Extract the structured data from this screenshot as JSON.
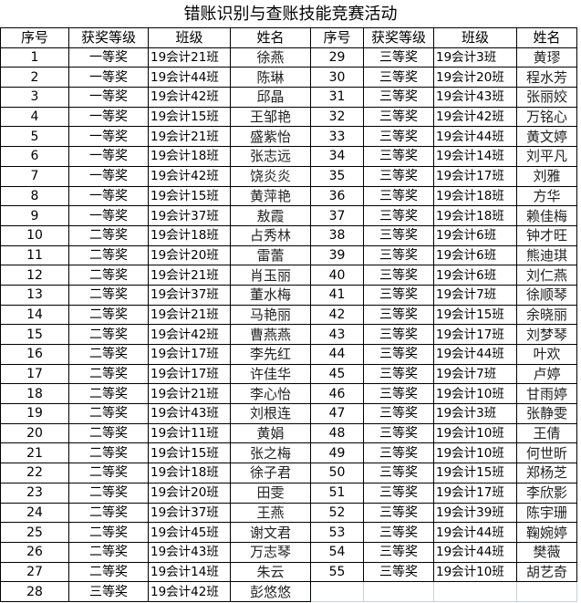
{
  "title": "错账识别与查账技能竞赛活动",
  "headers": [
    "序号",
    "获奖等级",
    "班级",
    "姓名",
    "序号",
    "获奖等级",
    "班级",
    "姓名"
  ],
  "left": [
    [
      "1",
      "一等奖",
      "19会计21班",
      "徐燕"
    ],
    [
      "2",
      "一等奖",
      "19会计44班",
      "陈琳"
    ],
    [
      "3",
      "一等奖",
      "19会计42班",
      "邱晶"
    ],
    [
      "4",
      "一等奖",
      "19会计15班",
      "王邹艳"
    ],
    [
      "5",
      "一等奖",
      "19会计21班",
      "盛紫怡"
    ],
    [
      "6",
      "一等奖",
      "19会计18班",
      "张志远"
    ],
    [
      "7",
      "一等奖",
      "19会计42班",
      "饶炎炎"
    ],
    [
      "8",
      "一等奖",
      "19会计15班",
      "黄萍艳"
    ],
    [
      "9",
      "一等奖",
      "19会计37班",
      "敖霞"
    ],
    [
      "10",
      "二等奖",
      "19会计18班",
      "占秀林"
    ],
    [
      "11",
      "二等奖",
      "19会计20班",
      "雷蕾"
    ],
    [
      "12",
      "二等奖",
      "19会计21班",
      "肖玉丽"
    ],
    [
      "13",
      "二等奖",
      "19会计37班",
      "董水梅"
    ],
    [
      "14",
      "二等奖",
      "19会计21班",
      "马艳丽"
    ],
    [
      "15",
      "二等奖",
      "19会计42班",
      "曹燕燕"
    ],
    [
      "16",
      "二等奖",
      "19会计17班",
      "李先红"
    ],
    [
      "17",
      "二等奖",
      "19会计17班",
      "许佳华"
    ],
    [
      "18",
      "二等奖",
      "19会计21班",
      "李心怡"
    ],
    [
      "19",
      "二等奖",
      "19会计43班",
      "刘根连"
    ],
    [
      "20",
      "二等奖",
      "19会计11班",
      "黄娟"
    ],
    [
      "21",
      "二等奖",
      "19会计15班",
      "张之梅"
    ],
    [
      "22",
      "二等奖",
      "19会计18班",
      "徐子君"
    ],
    [
      "23",
      "二等奖",
      "19会计20班",
      "田雯"
    ],
    [
      "24",
      "二等奖",
      "19会计37班",
      "王燕"
    ],
    [
      "25",
      "二等奖",
      "19会计45班",
      "谢文君"
    ],
    [
      "26",
      "二等奖",
      "19会计43班",
      "万志琴"
    ],
    [
      "27",
      "二等奖",
      "19会计14班",
      "朱云"
    ],
    [
      "28",
      "三等奖",
      "19会计42班",
      "彭悠悠"
    ]
  ],
  "right": [
    [
      "29",
      "三等奖",
      "19会计3班",
      "黄璆"
    ],
    [
      "30",
      "三等奖",
      "19会计20班",
      "程水芳"
    ],
    [
      "31",
      "三等奖",
      "19会计43班",
      "张丽姣"
    ],
    [
      "32",
      "三等奖",
      "19会计42班",
      "万铭心"
    ],
    [
      "33",
      "三等奖",
      "19会计44班",
      "黄文婷"
    ],
    [
      "34",
      "三等奖",
      "19会计14班",
      "刘平凡"
    ],
    [
      "35",
      "三等奖",
      "19会计17班",
      "刘雅"
    ],
    [
      "36",
      "三等奖",
      "19会计18班",
      "方华"
    ],
    [
      "37",
      "三等奖",
      "19会计18班",
      "赖佳梅"
    ],
    [
      "38",
      "三等奖",
      "19会计6班",
      "钟才旺"
    ],
    [
      "39",
      "三等奖",
      "19会计6班",
      "熊迪琪"
    ],
    [
      "40",
      "三等奖",
      "19会计6班",
      "刘仁燕"
    ],
    [
      "41",
      "三等奖",
      "19会计7班",
      "徐顺琴"
    ],
    [
      "42",
      "三等奖",
      "19会计15班",
      "余晓丽"
    ],
    [
      "43",
      "三等奖",
      "19会计17班",
      "刘梦琴"
    ],
    [
      "44",
      "三等奖",
      "19会计44班",
      "叶欢"
    ],
    [
      "45",
      "三等奖",
      "19会计7班",
      "卢婷"
    ],
    [
      "46",
      "三等奖",
      "19会计10班",
      "甘雨婷"
    ],
    [
      "47",
      "三等奖",
      "19会计3班",
      "张静雯"
    ],
    [
      "48",
      "三等奖",
      "19会计10班",
      "王倩"
    ],
    [
      "49",
      "三等奖",
      "19会计10班",
      "何世昕"
    ],
    [
      "50",
      "三等奖",
      "19会计15班",
      "郑杨芝"
    ],
    [
      "51",
      "三等奖",
      "19会计17班",
      "李欣影"
    ],
    [
      "52",
      "三等奖",
      "19会计39班",
      "陈宇珊"
    ],
    [
      "53",
      "三等奖",
      "19会计44班",
      "鞠婉婷"
    ],
    [
      "54",
      "三等奖",
      "19会计44班",
      "樊薇"
    ],
    [
      "55",
      "三等奖",
      "19会计10班",
      "胡艺奇"
    ]
  ]
}
